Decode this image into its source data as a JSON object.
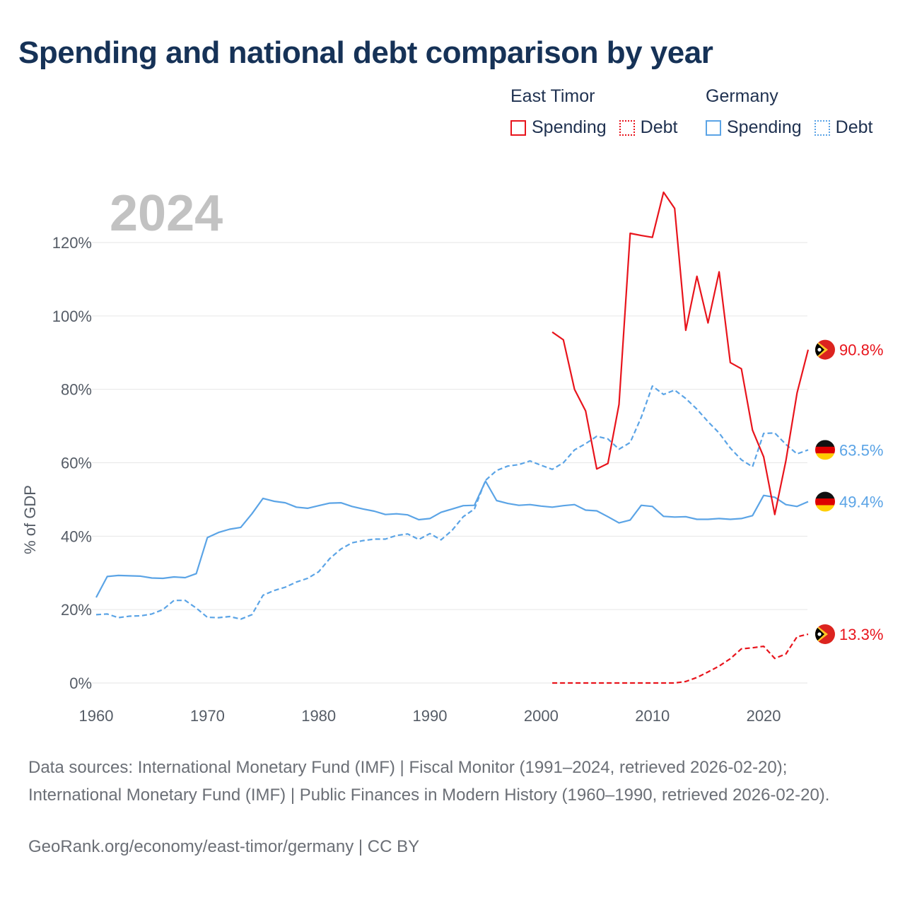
{
  "title": "Spending and national debt comparison by year",
  "legend": {
    "groups": [
      {
        "name": "East Timor",
        "color": "#e8141c",
        "items": [
          {
            "label": "Spending",
            "style": "solid"
          },
          {
            "label": "Debt",
            "style": "dotted"
          }
        ]
      },
      {
        "name": "Germany",
        "color": "#5ba4e6",
        "items": [
          {
            "label": "Spending",
            "style": "solid"
          },
          {
            "label": "Debt",
            "style": "dotted"
          }
        ]
      }
    ]
  },
  "chart_data": {
    "type": "line",
    "year_label": "2024",
    "ylabel": "% of GDP",
    "xlim": [
      1960,
      2024
    ],
    "ylim": [
      0,
      120
    ],
    "x_ticks": [
      1960,
      1970,
      1980,
      1990,
      2000,
      2010,
      2020
    ],
    "y_ticks": [
      {
        "value": 0,
        "label": "0%"
      },
      {
        "value": 20,
        "label": "20%"
      },
      {
        "value": 40,
        "label": "40%"
      },
      {
        "value": 60,
        "label": "60%"
      },
      {
        "value": 80,
        "label": "80%"
      },
      {
        "value": 100,
        "label": "100%"
      },
      {
        "value": 120,
        "label": "120%"
      }
    ],
    "series": [
      {
        "name": "Germany Spending",
        "country": "Germany",
        "metric": "Spending",
        "color": "#5ba4e6",
        "dashed": false,
        "end_label": "49.4%",
        "x": [
          1960,
          1961,
          1962,
          1963,
          1964,
          1965,
          1966,
          1967,
          1968,
          1969,
          1970,
          1971,
          1972,
          1973,
          1974,
          1975,
          1976,
          1977,
          1978,
          1979,
          1980,
          1981,
          1982,
          1983,
          1984,
          1985,
          1986,
          1987,
          1988,
          1989,
          1990,
          1991,
          1992,
          1993,
          1994,
          1995,
          1996,
          1997,
          1998,
          1999,
          2000,
          2001,
          2002,
          2003,
          2004,
          2005,
          2006,
          2007,
          2008,
          2009,
          2010,
          2011,
          2012,
          2013,
          2014,
          2015,
          2016,
          2017,
          2018,
          2019,
          2020,
          2021,
          2022,
          2023,
          2024
        ],
        "values": [
          23.3,
          29.0,
          29.3,
          29.2,
          29.1,
          28.6,
          28.5,
          28.9,
          28.7,
          29.8,
          39.6,
          41.0,
          41.9,
          42.4,
          46.1,
          50.3,
          49.5,
          49.1,
          47.9,
          47.6,
          48.3,
          49.0,
          49.1,
          48.1,
          47.4,
          46.8,
          45.9,
          46.1,
          45.8,
          44.5,
          44.8,
          46.5,
          47.4,
          48.3,
          48.4,
          55.0,
          49.7,
          48.9,
          48.4,
          48.6,
          48.2,
          47.9,
          48.3,
          48.6,
          47.1,
          46.9,
          45.3,
          43.6,
          44.4,
          48.4,
          48.1,
          45.4,
          45.2,
          45.3,
          44.6,
          44.6,
          44.8,
          44.6,
          44.8,
          45.6,
          51.1,
          50.6,
          48.6,
          48.1,
          49.4
        ]
      },
      {
        "name": "Germany Debt",
        "country": "Germany",
        "metric": "Debt",
        "color": "#5ba4e6",
        "dashed": true,
        "end_label": "63.5%",
        "x": [
          1960,
          1961,
          1962,
          1963,
          1964,
          1965,
          1966,
          1967,
          1968,
          1969,
          1970,
          1971,
          1972,
          1973,
          1974,
          1975,
          1976,
          1977,
          1978,
          1979,
          1980,
          1981,
          1982,
          1983,
          1984,
          1985,
          1986,
          1987,
          1988,
          1989,
          1990,
          1991,
          1992,
          1993,
          1994,
          1995,
          1996,
          1997,
          1998,
          1999,
          2000,
          2001,
          2002,
          2003,
          2004,
          2005,
          2006,
          2007,
          2008,
          2009,
          2010,
          2011,
          2012,
          2013,
          2014,
          2015,
          2016,
          2017,
          2018,
          2019,
          2020,
          2021,
          2022,
          2023,
          2024
        ],
        "values": [
          18.6,
          18.8,
          17.8,
          18.2,
          18.3,
          18.8,
          20.0,
          22.5,
          22.5,
          20.4,
          17.9,
          17.8,
          18.1,
          17.4,
          18.6,
          23.9,
          25.2,
          26.1,
          27.5,
          28.5,
          30.3,
          33.9,
          36.5,
          38.2,
          38.8,
          39.2,
          39.2,
          40.2,
          40.6,
          39.1,
          40.7,
          39.0,
          41.6,
          45.3,
          47.4,
          55.2,
          57.9,
          59.1,
          59.5,
          60.5,
          59.3,
          58.2,
          60.0,
          63.5,
          65.2,
          67.2,
          66.5,
          63.7,
          65.5,
          72.4,
          80.9,
          78.6,
          79.8,
          77.5,
          74.6,
          71.2,
          68.1,
          64.0,
          60.8,
          58.9,
          68.0,
          68.1,
          65.0,
          62.4,
          63.5
        ]
      },
      {
        "name": "East Timor Spending",
        "country": "East Timor",
        "metric": "Spending",
        "color": "#e8141c",
        "dashed": false,
        "end_label": "90.8%",
        "x": [
          2001,
          2002,
          2003,
          2004,
          2005,
          2006,
          2007,
          2008,
          2009,
          2010,
          2011,
          2012,
          2013,
          2014,
          2015,
          2016,
          2017,
          2018,
          2019,
          2020,
          2021,
          2022,
          2023,
          2024
        ],
        "values": [
          95.6,
          93.5,
          80.0,
          74.1,
          58.3,
          59.8,
          75.9,
          122.5,
          121.9,
          121.4,
          133.7,
          129.3,
          96.1,
          110.8,
          98.1,
          112.0,
          87.3,
          85.6,
          68.9,
          61.6,
          45.9,
          60.5,
          79.0,
          90.8
        ]
      },
      {
        "name": "East Timor Debt",
        "country": "East Timor",
        "metric": "Debt",
        "color": "#e8141c",
        "dashed": true,
        "end_label": "13.3%",
        "x": [
          2001,
          2002,
          2003,
          2004,
          2005,
          2006,
          2007,
          2008,
          2009,
          2010,
          2011,
          2012,
          2013,
          2014,
          2015,
          2016,
          2017,
          2018,
          2019,
          2020,
          2021,
          2022,
          2023,
          2024
        ],
        "values": [
          0,
          0,
          0,
          0,
          0,
          0,
          0,
          0,
          0,
          0,
          0,
          0,
          0.4,
          1.5,
          3.0,
          4.6,
          6.6,
          9.3,
          9.6,
          10.0,
          6.7,
          7.9,
          12.6,
          13.3
        ]
      }
    ]
  },
  "sources_text": "Data sources: International Monetary Fund (IMF) | Fiscal Monitor (1991–2024, retrieved 2026-02-20); International Monetary Fund (IMF) | Public Finances in Modern History (1960–1990, retrieved 2026-02-20).",
  "credit_text": "GeoRank.org/economy/east-timor/germany | CC BY"
}
